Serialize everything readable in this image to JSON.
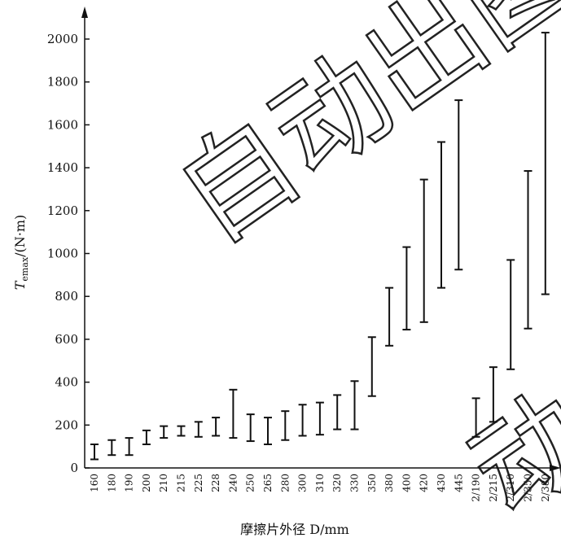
{
  "watermark": {
    "text_main": "自动出图",
    "text_side": "动"
  },
  "chart_data": {
    "type": "range-bar",
    "xlabel": "摩擦片外径 D/mm",
    "ylabel_main": "T",
    "ylabel_sub": "emax",
    "ylabel_unit": "/(N·m)",
    "ylim": [
      0,
      2100
    ],
    "yticks": [
      0,
      200,
      400,
      600,
      800,
      1000,
      1200,
      1400,
      1600,
      1800,
      2000
    ],
    "grid": false,
    "categories": [
      "160",
      "180",
      "190",
      "200",
      "210",
      "215",
      "225",
      "228",
      "240",
      "250",
      "265",
      "280",
      "300",
      "310",
      "320",
      "330",
      "350",
      "380",
      "400",
      "420",
      "430",
      "445",
      "2/190",
      "2/215",
      "2/310",
      "2/350",
      "2/380"
    ],
    "ranges": [
      [
        40,
        110
      ],
      [
        60,
        130
      ],
      [
        60,
        140
      ],
      [
        110,
        175
      ],
      [
        140,
        195
      ],
      [
        150,
        195
      ],
      [
        145,
        215
      ],
      [
        150,
        235
      ],
      [
        140,
        365
      ],
      [
        125,
        250
      ],
      [
        110,
        235
      ],
      [
        130,
        265
      ],
      [
        150,
        295
      ],
      [
        155,
        305
      ],
      [
        180,
        340
      ],
      [
        180,
        405
      ],
      [
        335,
        610
      ],
      [
        570,
        840
      ],
      [
        645,
        1030
      ],
      [
        680,
        1345
      ],
      [
        840,
        1520
      ],
      [
        925,
        1715
      ],
      [
        145,
        325
      ],
      [
        215,
        470
      ],
      [
        460,
        970
      ],
      [
        650,
        1385
      ],
      [
        810,
        2030
      ]
    ]
  }
}
